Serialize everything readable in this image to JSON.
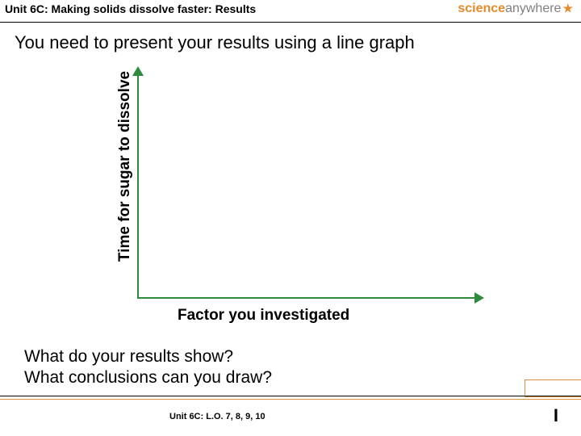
{
  "header": {
    "unit_title": "Unit 6C: Making solids dissolve faster: Results",
    "logo_part1": "science",
    "logo_part2": "anywhere"
  },
  "main_instruction": "You need to present your results using a line graph",
  "graph": {
    "y_label": "Time for sugar to dissolve",
    "x_label": "Factor you investigated",
    "axis_color": "#2e8b3d"
  },
  "questions": {
    "q1": "What do your results show?",
    "q2": "What conclusions can you draw?"
  },
  "footer": {
    "text": "Unit 6C: L.O. 7, 8, 9, 10",
    "page_marker": "I"
  }
}
